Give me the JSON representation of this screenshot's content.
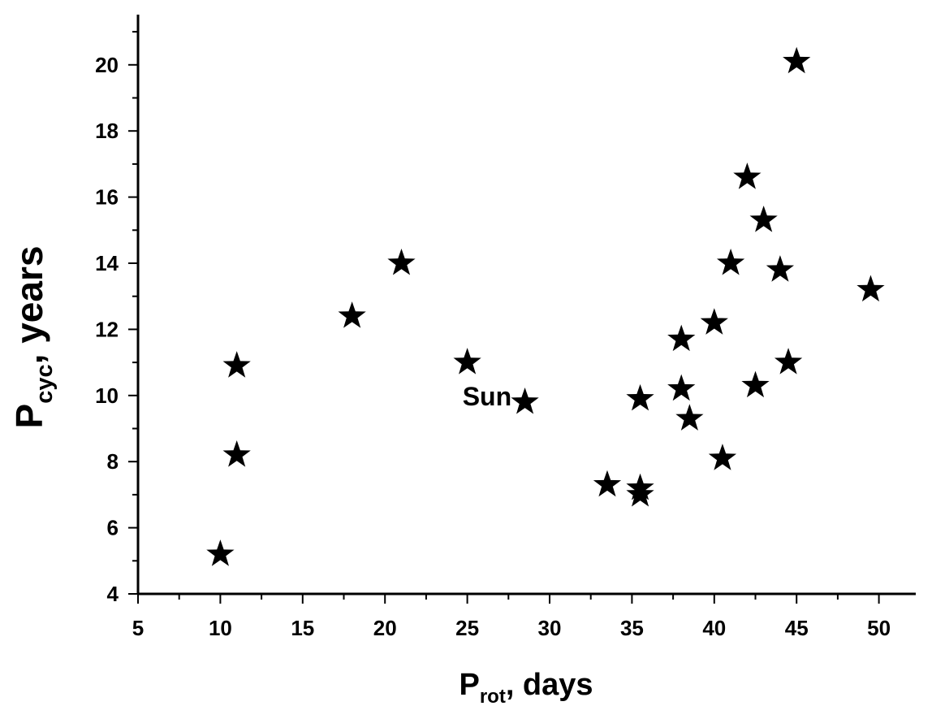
{
  "chart_data": {
    "type": "scatter",
    "marker": "star",
    "marker_color": "#000000",
    "xlim": [
      5,
      52
    ],
    "ylim": [
      4,
      21.5
    ],
    "xticks": [
      5,
      10,
      15,
      20,
      25,
      30,
      35,
      40,
      45,
      50
    ],
    "yticks": [
      4,
      6,
      8,
      10,
      12,
      14,
      16,
      18,
      20
    ],
    "x_minor_step": 2.5,
    "y_minor_step": 1,
    "grid": false,
    "xlabel": {
      "main": "P",
      "sub": "rot",
      "rest": ", days"
    },
    "ylabel": {
      "main": "P",
      "sub": "cyc",
      "rest": ", years"
    },
    "annotations": [
      {
        "text": "Sun",
        "x": 26.2,
        "y": 9.7
      }
    ],
    "series": [
      {
        "points": [
          {
            "x": 10.0,
            "y": 5.2
          },
          {
            "x": 11.0,
            "y": 8.2
          },
          {
            "x": 11.0,
            "y": 10.9
          },
          {
            "x": 18.0,
            "y": 12.4
          },
          {
            "x": 21.0,
            "y": 14.0
          },
          {
            "x": 25.0,
            "y": 11.0
          },
          {
            "x": 28.5,
            "y": 9.8
          },
          {
            "x": 33.5,
            "y": 7.3
          },
          {
            "x": 35.5,
            "y": 7.2
          },
          {
            "x": 35.5,
            "y": 7.0
          },
          {
            "x": 35.5,
            "y": 9.9
          },
          {
            "x": 38.0,
            "y": 10.2
          },
          {
            "x": 38.0,
            "y": 11.7
          },
          {
            "x": 38.5,
            "y": 9.3
          },
          {
            "x": 40.0,
            "y": 12.2
          },
          {
            "x": 40.5,
            "y": 8.1
          },
          {
            "x": 41.0,
            "y": 14.0
          },
          {
            "x": 42.0,
            "y": 16.6
          },
          {
            "x": 42.5,
            "y": 10.3
          },
          {
            "x": 43.0,
            "y": 15.3
          },
          {
            "x": 44.0,
            "y": 13.8
          },
          {
            "x": 44.5,
            "y": 11.0
          },
          {
            "x": 45.0,
            "y": 20.1
          },
          {
            "x": 49.5,
            "y": 13.2
          }
        ]
      }
    ]
  }
}
